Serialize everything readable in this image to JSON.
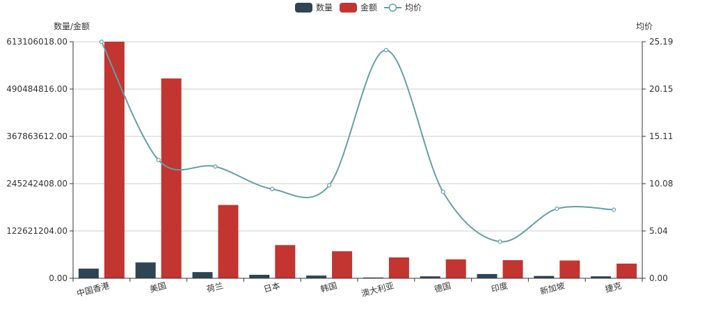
{
  "chart_data": {
    "type": "bar",
    "categories": [
      "中国香港",
      "美国",
      "荷兰",
      "日本",
      "韩国",
      "澳大利亚",
      "德国",
      "印度",
      "新加坡",
      "捷克"
    ],
    "series": [
      {
        "name": "数量",
        "type": "bar",
        "axis": "left",
        "color": "#2f4554",
        "values": [
          25000000,
          41000000,
          16000000,
          9000000,
          7000000,
          2000000,
          5000000,
          11000000,
          6000000,
          5000000
        ]
      },
      {
        "name": "金额",
        "type": "bar",
        "axis": "left",
        "color": "#c23531",
        "values": [
          613106018,
          518000000,
          190000000,
          86000000,
          70000000,
          54000000,
          49000000,
          47000000,
          46000000,
          38000000
        ]
      },
      {
        "name": "均价",
        "type": "line",
        "smooth": true,
        "axis": "right",
        "color": "#61a0a8",
        "values": [
          25.19,
          12.6,
          11.9,
          9.5,
          9.9,
          24.3,
          9.2,
          3.9,
          7.4,
          7.3
        ]
      }
    ],
    "y_left": {
      "label": "数量/金额",
      "min": 0,
      "max": 613106018,
      "ticks": [
        "0.00",
        "122621204.00",
        "245242408.00",
        "367863612.00",
        "490484816.00",
        "613106018.00"
      ]
    },
    "y_right": {
      "label": "均价",
      "min": 0,
      "max": 25.19,
      "ticks": [
        "0.00",
        "5.04",
        "10.08",
        "15.11",
        "20.15",
        "25.19"
      ]
    },
    "grid": true,
    "legend_position": "top-center"
  }
}
